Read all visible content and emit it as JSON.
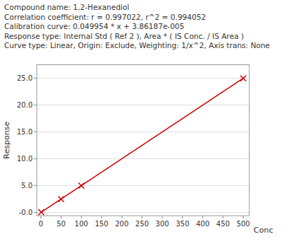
{
  "chart_data": {
    "type": "line",
    "annotations": [
      "Compound name: 1,2-Hexanediol",
      "Correlation coefficient: r = 0.997022, r^2 = 0.994052",
      "Calibration curve: 0.049954 * x + 3.86187e-005",
      "Response type: Internal Std ( Ref 2 ), Area * ( IS Conc. / IS Area )",
      "Curve type: Linear, Origin: Exclude, Weighting: 1/x^2, Axis trans: None"
    ],
    "x_label": "Conc",
    "y_label": "Response",
    "series": [
      {
        "type": "line",
        "color": "#CC0000",
        "x": [
          0,
          500
        ],
        "values": [
          3.86187e-05,
          24.9770386187
        ]
      },
      {
        "type": "scatter",
        "marker": "x",
        "color": "#CC0000",
        "x": [
          1,
          50,
          100,
          500
        ],
        "values": [
          0.0499926187,
          2.4977386187,
          4.9954386187,
          24.9770386187
        ]
      }
    ],
    "xlim": [
      -10,
      515
    ],
    "ylim": [
      -0.6,
      27.5
    ],
    "xticks": [
      0,
      50,
      100,
      150,
      200,
      250,
      300,
      350,
      400,
      450,
      500
    ],
    "yticks": [
      {
        "value": 0,
        "label": "-0.0"
      },
      {
        "value": 5,
        "label": "5.0"
      },
      {
        "value": 10,
        "label": "10.0"
      },
      {
        "value": 15,
        "label": "15.0"
      },
      {
        "value": 20,
        "label": "20.0"
      },
      {
        "value": 25,
        "label": "25.0"
      }
    ],
    "grid": "y"
  }
}
